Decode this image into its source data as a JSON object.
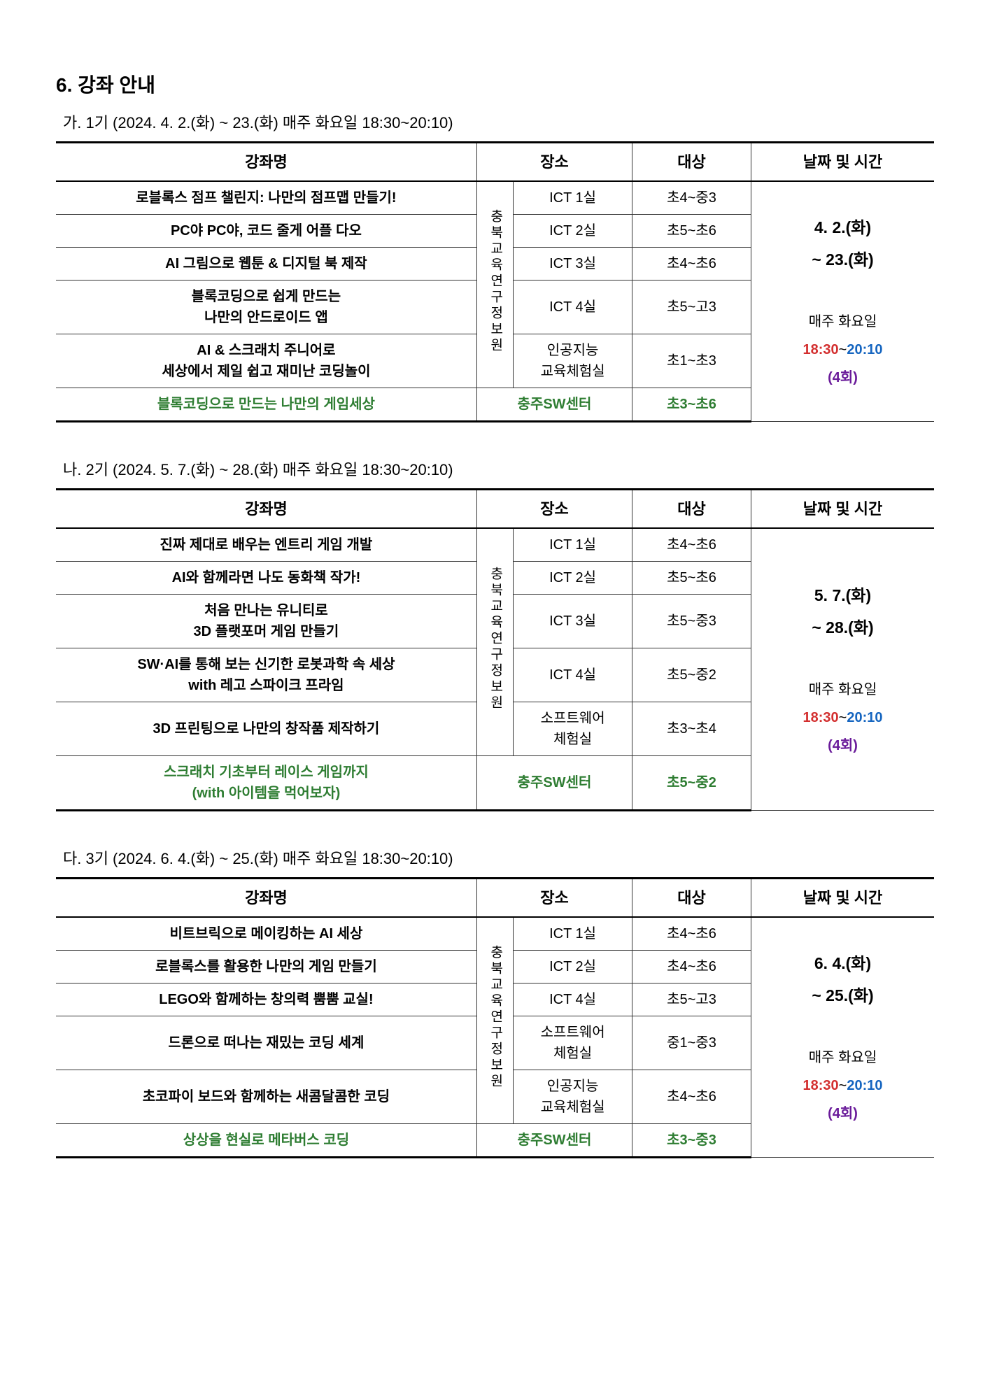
{
  "title": "6. 강좌 안내",
  "headers": {
    "course": "강좌명",
    "location": "장소",
    "target": "대상",
    "schedule": "날짜 및 시간"
  },
  "colors": {
    "green": "#2e7d32",
    "red": "#d32f2f",
    "blue": "#1565c0",
    "purple": "#6a1b9a",
    "black": "#000000",
    "border": "#333333"
  },
  "fonts": {
    "title_size": 28,
    "subtitle_size": 22,
    "header_size": 22,
    "cell_size": 20,
    "schedule_date_size": 23
  },
  "terms": [
    {
      "label": "가. 1기 (2024. 4. 2.(화) ~ 23.(화) 매주 화요일 18:30~20:10)",
      "locationMain": "충북교육연구정보원",
      "schedule": {
        "date1": "4. 2.(화)",
        "date2": "~ 23.(화)",
        "day": "매주 화요일",
        "time1": "18:30",
        "tilde": "~",
        "time2": "20:10",
        "count": "(4회)"
      },
      "rows": [
        {
          "name": "로블록스 점프 챌린지: 나만의 점프맵 만들기!",
          "name2": "",
          "room": "ICT 1실",
          "target": "초4~중3",
          "green": false
        },
        {
          "name": "PC야 PC야, 코드 줄게 어플 다오",
          "name2": "",
          "room": "ICT 2실",
          "target": "초5~초6",
          "green": false
        },
        {
          "name": "AI 그림으로 웹툰 & 디지털 북 제작",
          "name2": "",
          "room": "ICT 3실",
          "target": "초4~초6",
          "green": false
        },
        {
          "name": "블록코딩으로 쉽게 만드는",
          "name2": "나만의 안드로이드 앱",
          "room": "ICT 4실",
          "target": "초5~고3",
          "green": false
        },
        {
          "name": "AI & 스크래치 주니어로",
          "name2": "세상에서 제일 쉽고 재미난 코딩놀이",
          "room": "인공지능\n교육체험실",
          "target": "초1~초3",
          "green": false
        },
        {
          "name": "블록코딩으로 만드는 나만의 게임세상",
          "name2": "",
          "room": "충주SW센터",
          "target": "초3~초6",
          "green": true
        }
      ]
    },
    {
      "label": "나. 2기 (2024. 5. 7.(화) ~ 28.(화) 매주 화요일 18:30~20:10)",
      "locationMain": "충북교육연구정보원",
      "schedule": {
        "date1": "5. 7.(화)",
        "date2": "~ 28.(화)",
        "day": "매주 화요일",
        "time1": "18:30",
        "tilde": "~",
        "time2": "20:10",
        "count": "(4회)"
      },
      "rows": [
        {
          "name": "진짜 제대로 배우는 엔트리 게임 개발",
          "name2": "",
          "room": "ICT 1실",
          "target": "초4~초6",
          "green": false
        },
        {
          "name": "AI와 함께라면 나도 동화책 작가!",
          "name2": "",
          "room": "ICT 2실",
          "target": "초5~초6",
          "green": false
        },
        {
          "name": "처음 만나는 유니티로",
          "name2": "3D 플랫포머 게임 만들기",
          "room": "ICT 3실",
          "target": "초5~중3",
          "green": false
        },
        {
          "name": "SW·AI를 통해 보는 신기한 로봇과학 속 세상",
          "name2": "with 레고 스파이크 프라임",
          "room": "ICT 4실",
          "target": "초5~중2",
          "green": false
        },
        {
          "name": "3D 프린팅으로 나만의 창작품 제작하기",
          "name2": "",
          "room": "소프트웨어\n체험실",
          "target": "초3~초4",
          "green": false
        },
        {
          "name": "스크래치 기초부터 레이스 게임까지",
          "name2": "(with 아이템을 먹어보자)",
          "room": "충주SW센터",
          "target": "초5~중2",
          "green": true
        }
      ]
    },
    {
      "label": "다. 3기 (2024. 6. 4.(화) ~ 25.(화) 매주 화요일 18:30~20:10)",
      "locationMain": "충북교육연구정보원",
      "schedule": {
        "date1": "6. 4.(화)",
        "date2": "~ 25.(화)",
        "day": "매주 화요일",
        "time1": "18:30",
        "tilde": "~",
        "time2": "20:10",
        "count": "(4회)"
      },
      "rows": [
        {
          "name": "비트브릭으로 메이킹하는 AI 세상",
          "name2": "",
          "room": "ICT 1실",
          "target": "초4~초6",
          "green": false
        },
        {
          "name": "로블록스를 활용한 나만의 게임 만들기",
          "name2": "",
          "room": "ICT 2실",
          "target": "초4~초6",
          "green": false
        },
        {
          "name": "LEGO와 함께하는 창의력 뿜뿜 교실!",
          "name2": "",
          "room": "ICT 4실",
          "target": "초5~고3",
          "green": false
        },
        {
          "name": "드론으로 떠나는 재밌는 코딩 세계",
          "name2": "",
          "room": "소프트웨어\n체험실",
          "target": "중1~중3",
          "green": false
        },
        {
          "name": "초코파이 보드와 함께하는 새콤달콤한 코딩",
          "name2": "",
          "room": "인공지능\n교육체험실",
          "target": "초4~초6",
          "green": false
        },
        {
          "name": "상상을 현실로 메타버스 코딩",
          "name2": "",
          "room": "충주SW센터",
          "target": "초3~중3",
          "green": true
        }
      ]
    }
  ]
}
